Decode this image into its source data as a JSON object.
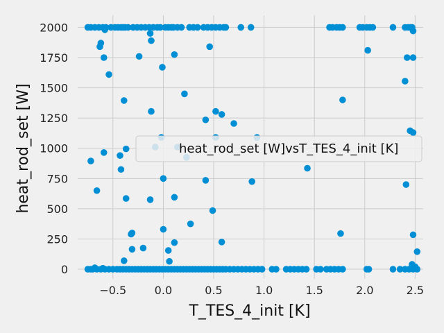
{
  "chart_data": {
    "type": "scatter",
    "title": "",
    "xlabel": "T_TES_4_init [K]",
    "ylabel": "heat_rod_set [W]",
    "xlim": [
      -0.85,
      2.58
    ],
    "ylim": [
      -80,
      2100
    ],
    "xticks": [
      -0.5,
      0.0,
      0.5,
      1.0,
      1.5,
      2.0,
      2.5
    ],
    "xtick_labels": [
      "−0.5",
      "0.0",
      "0.5",
      "1.0",
      "1.5",
      "2.0",
      "2.5"
    ],
    "yticks": [
      0,
      250,
      500,
      750,
      1000,
      1250,
      1500,
      1750,
      2000
    ],
    "ytick_labels": [
      "0",
      "250",
      "500",
      "750",
      "1000",
      "1250",
      "1500",
      "1750",
      "2000"
    ],
    "grid": true,
    "legend": {
      "placement": "right",
      "entries": [
        "heat_rod_set [W]vsT_TES_4_init [K]"
      ]
    },
    "colors": {
      "series": "#008fd5",
      "grid": "#cbcbcb",
      "background": "#f0f0f0"
    },
    "series": [
      {
        "name": "heat_rod_set [W]vsT_TES_4_init [K]",
        "points": [
          [
            -0.75,
            2000
          ],
          [
            -0.72,
            2000
          ],
          [
            -0.68,
            2000
          ],
          [
            -0.64,
            2000
          ],
          [
            -0.6,
            2000
          ],
          [
            -0.58,
            1980
          ],
          [
            -0.57,
            2000
          ],
          [
            -0.52,
            2000
          ],
          [
            -0.48,
            2000
          ],
          [
            -0.45,
            2000
          ],
          [
            -0.42,
            2000
          ],
          [
            -0.4,
            2000
          ],
          [
            -0.38,
            2000
          ],
          [
            -0.35,
            2000
          ],
          [
            -0.3,
            2000
          ],
          [
            -0.26,
            2000
          ],
          [
            -0.22,
            2000
          ],
          [
            -0.18,
            2000
          ],
          [
            -0.14,
            2000
          ],
          [
            -0.1,
            2000
          ],
          [
            -0.06,
            2000
          ],
          [
            -0.03,
            2000
          ],
          [
            0.02,
            2000
          ],
          [
            0.05,
            2000
          ],
          [
            0.08,
            2000
          ],
          [
            0.1,
            2000
          ],
          [
            0.14,
            2000
          ],
          [
            0.18,
            2000
          ],
          [
            0.26,
            2000
          ],
          [
            0.3,
            2000
          ],
          [
            0.34,
            2000
          ],
          [
            0.4,
            2000
          ],
          [
            0.44,
            2000
          ],
          [
            0.48,
            2000
          ],
          [
            0.52,
            2000
          ],
          [
            0.56,
            2000
          ],
          [
            0.6,
            2000
          ],
          [
            0.62,
            2000
          ],
          [
            0.77,
            2000
          ],
          [
            0.87,
            2000
          ],
          [
            1.65,
            2000
          ],
          [
            1.68,
            2000
          ],
          [
            1.72,
            2000
          ],
          [
            1.75,
            2000
          ],
          [
            1.78,
            2000
          ],
          [
            1.95,
            2000
          ],
          [
            1.98,
            2000
          ],
          [
            2.02,
            2000
          ],
          [
            2.05,
            2000
          ],
          [
            2.08,
            2000
          ],
          [
            2.28,
            2000
          ],
          [
            2.4,
            2000
          ],
          [
            2.43,
            2000
          ],
          [
            2.45,
            2000
          ],
          [
            2.47,
            2000
          ],
          [
            2.48,
            1970
          ],
          [
            -0.13,
            1950
          ],
          [
            -0.62,
            1870
          ],
          [
            -0.63,
            1840
          ],
          [
            -0.12,
            1890
          ],
          [
            0.46,
            1840
          ],
          [
            -0.59,
            1750
          ],
          [
            -0.24,
            1760
          ],
          [
            0.11,
            1775
          ],
          [
            2.03,
            1810
          ],
          [
            2.42,
            1750
          ],
          [
            2.48,
            1750
          ],
          [
            -0.54,
            1610
          ],
          [
            -0.01,
            1670
          ],
          [
            2.4,
            1555
          ],
          [
            0.21,
            1450
          ],
          [
            -0.39,
            1395
          ],
          [
            1.78,
            1400
          ],
          [
            -0.12,
            1305
          ],
          [
            0.52,
            1305
          ],
          [
            0.58,
            1280
          ],
          [
            0.7,
            1205
          ],
          [
            0.42,
            1235
          ],
          [
            2.45,
            1145
          ],
          [
            2.48,
            1130
          ],
          [
            -0.02,
            1090
          ],
          [
            0.52,
            1090
          ],
          [
            0.93,
            1090
          ],
          [
            -0.08,
            1010
          ],
          [
            -0.37,
            995
          ],
          [
            -0.59,
            965
          ],
          [
            0.14,
            1010
          ],
          [
            0.23,
            925
          ],
          [
            -0.43,
            940
          ],
          [
            -0.72,
            895
          ],
          [
            -0.42,
            825
          ],
          [
            1.43,
            835
          ],
          [
            0.0,
            750
          ],
          [
            0.42,
            735
          ],
          [
            0.88,
            725
          ],
          [
            2.41,
            700
          ],
          [
            -0.66,
            650
          ],
          [
            -0.37,
            585
          ],
          [
            0.11,
            595
          ],
          [
            -0.13,
            575
          ],
          [
            0.49,
            485
          ],
          [
            0.27,
            375
          ],
          [
            0.0,
            330
          ],
          [
            -0.31,
            300
          ],
          [
            -0.32,
            290
          ],
          [
            1.76,
            295
          ],
          [
            2.48,
            285
          ],
          [
            0.11,
            220
          ],
          [
            0.58,
            225
          ],
          [
            -0.2,
            175
          ],
          [
            -0.31,
            165
          ],
          [
            0.05,
            155
          ],
          [
            2.52,
            145
          ],
          [
            -0.39,
            70
          ],
          [
            0.06,
            65
          ],
          [
            2.47,
            40
          ],
          [
            2.5,
            20
          ],
          [
            -0.68,
            12
          ],
          [
            -0.6,
            8
          ],
          [
            -0.75,
            0
          ],
          [
            -0.72,
            0
          ],
          [
            -0.7,
            0
          ],
          [
            -0.66,
            0
          ],
          [
            -0.62,
            0
          ],
          [
            -0.58,
            0
          ],
          [
            -0.54,
            0
          ],
          [
            -0.5,
            0
          ],
          [
            -0.46,
            0
          ],
          [
            -0.43,
            0
          ],
          [
            -0.4,
            0
          ],
          [
            -0.37,
            0
          ],
          [
            -0.34,
            0
          ],
          [
            -0.31,
            0
          ],
          [
            -0.28,
            0
          ],
          [
            -0.25,
            0
          ],
          [
            -0.22,
            0
          ],
          [
            -0.19,
            0
          ],
          [
            -0.16,
            0
          ],
          [
            -0.13,
            0
          ],
          [
            -0.1,
            0
          ],
          [
            -0.07,
            0
          ],
          [
            -0.04,
            0
          ],
          [
            -0.01,
            0
          ],
          [
            0.02,
            0
          ],
          [
            0.05,
            0
          ],
          [
            0.08,
            0
          ],
          [
            0.11,
            0
          ],
          [
            0.14,
            0
          ],
          [
            0.17,
            0
          ],
          [
            0.2,
            0
          ],
          [
            0.23,
            0
          ],
          [
            0.26,
            0
          ],
          [
            0.29,
            0
          ],
          [
            0.32,
            0
          ],
          [
            0.35,
            0
          ],
          [
            0.38,
            0
          ],
          [
            0.41,
            0
          ],
          [
            0.44,
            0
          ],
          [
            0.47,
            0
          ],
          [
            0.5,
            0
          ],
          [
            0.53,
            0
          ],
          [
            0.56,
            0
          ],
          [
            0.59,
            0
          ],
          [
            0.62,
            0
          ],
          [
            0.66,
            0
          ],
          [
            0.7,
            0
          ],
          [
            0.74,
            0
          ],
          [
            0.78,
            0
          ],
          [
            0.82,
            0
          ],
          [
            0.86,
            0
          ],
          [
            0.9,
            0
          ],
          [
            0.94,
            0
          ],
          [
            0.98,
            0
          ],
          [
            1.08,
            0
          ],
          [
            1.12,
            0
          ],
          [
            1.22,
            0
          ],
          [
            1.26,
            0
          ],
          [
            1.3,
            0
          ],
          [
            1.34,
            0
          ],
          [
            1.38,
            0
          ],
          [
            1.42,
            0
          ],
          [
            1.52,
            0
          ],
          [
            1.56,
            0
          ],
          [
            1.62,
            0
          ],
          [
            1.66,
            0
          ],
          [
            1.7,
            0
          ],
          [
            1.74,
            0
          ],
          [
            1.78,
            0
          ],
          [
            2.02,
            0
          ],
          [
            2.04,
            0
          ],
          [
            2.28,
            0
          ],
          [
            2.35,
            0
          ],
          [
            2.4,
            0
          ],
          [
            2.44,
            0
          ],
          [
            2.48,
            0
          ],
          [
            2.52,
            0
          ]
        ]
      }
    ]
  }
}
